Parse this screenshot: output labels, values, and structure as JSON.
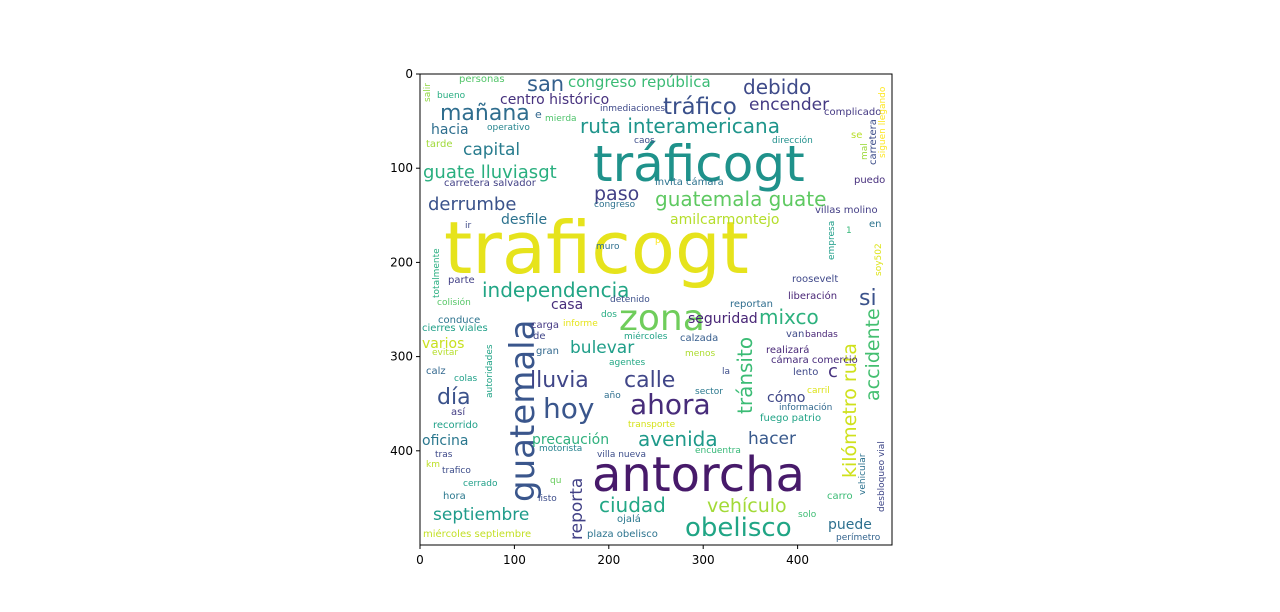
{
  "axes": {
    "x_ticks": [
      "0",
      "100",
      "200",
      "300",
      "400"
    ],
    "y_ticks": [
      "0",
      "100",
      "200",
      "300",
      "400"
    ],
    "x_tick_values": [
      0,
      100,
      200,
      300,
      400
    ],
    "y_tick_values": [
      0,
      100,
      200,
      300,
      400
    ],
    "xlim": [
      0,
      500
    ],
    "ylim": [
      500,
      0
    ]
  },
  "palette": "viridis",
  "words": [
    {
      "text": "traficogt",
      "color": "#e6e31c"
    },
    {
      "text": "antorcha",
      "color": "#471a6a"
    },
    {
      "text": "tráficogt",
      "color": "#1f928b"
    },
    {
      "text": "guatemala",
      "color": "#3a568c"
    },
    {
      "text": "zona",
      "color": "#6fcd5b"
    },
    {
      "text": "hoy",
      "color": "#3a568c"
    },
    {
      "text": "ahora",
      "color": "#472c7a"
    },
    {
      "text": "obelisco",
      "color": "#20a585"
    },
    {
      "text": "tráfico",
      "color": "#3a508b"
    },
    {
      "text": "mañana",
      "color": "#2f6d8e"
    },
    {
      "text": "san",
      "color": "#34608d"
    },
    {
      "text": "debido",
      "color": "#3e4a89"
    },
    {
      "text": "ruta interamericana",
      "color": "#1f958b"
    },
    {
      "text": "guatemala guate",
      "color": "#5ec961"
    },
    {
      "text": "independencia",
      "color": "#21a585"
    },
    {
      "text": "lluvia",
      "color": "#404688"
    },
    {
      "text": "calle",
      "color": "#404688"
    },
    {
      "text": "día",
      "color": "#3b528b"
    },
    {
      "text": "mixco",
      "color": "#2db17e"
    },
    {
      "text": "avenida",
      "color": "#1f9a8a"
    },
    {
      "text": "ciudad",
      "color": "#22a785"
    },
    {
      "text": "tránsito",
      "color": "#3bbc75"
    },
    {
      "text": "accidente",
      "color": "#44bf70"
    },
    {
      "text": "kilómetro ruta",
      "color": "#cfe11c"
    },
    {
      "text": "paso",
      "color": "#424086"
    },
    {
      "text": "capital",
      "color": "#287c8e"
    },
    {
      "text": "derrumbe",
      "color": "#3a528b"
    },
    {
      "text": "guate lluviasgt",
      "color": "#29af7f"
    },
    {
      "text": "encender",
      "color": "#443a83"
    },
    {
      "text": "congreso república",
      "color": "#3bbb75"
    },
    {
      "text": "centro histórico",
      "color": "#46317e"
    },
    {
      "text": "hacia",
      "color": "#2e6e8e"
    },
    {
      "text": "si",
      "color": "#3b528b"
    },
    {
      "text": "bulevar",
      "color": "#1f9e89"
    },
    {
      "text": "septiembre",
      "color": "#1e9b8a"
    },
    {
      "text": "reporta",
      "color": "#424186"
    },
    {
      "text": "vehículo",
      "color": "#a2da37"
    },
    {
      "text": "hacer",
      "color": "#38598c"
    },
    {
      "text": "puede",
      "color": "#2d708e"
    },
    {
      "text": "oficina",
      "color": "#2a778e"
    },
    {
      "text": "precaución",
      "color": "#30b17e"
    },
    {
      "text": "desfile",
      "color": "#2c728e"
    },
    {
      "text": "seguridad",
      "color": "#482576"
    },
    {
      "text": "casa",
      "color": "#472d7b"
    },
    {
      "text": "varios",
      "color": "#c8e020"
    },
    {
      "text": "amilcarmontejo",
      "color": "#b5de2b"
    },
    {
      "text": "c",
      "color": "#46327e"
    },
    {
      "text": "cómo",
      "color": "#3f4788"
    },
    {
      "text": "personas",
      "color": "#52c569"
    },
    {
      "text": "complicado",
      "color": "#443983"
    },
    {
      "text": "salir",
      "color": "#90d743"
    },
    {
      "text": "bueno",
      "color": "#27ad81"
    },
    {
      "text": "inmediaciones",
      "color": "#3e4989"
    },
    {
      "text": "e",
      "color": "#31678e"
    },
    {
      "text": "mierda",
      "color": "#4ec36b"
    },
    {
      "text": "operativo",
      "color": "#25848e"
    },
    {
      "text": "siguen llegando",
      "color": "#fde725"
    },
    {
      "text": "carretera",
      "color": "#3d4e8a"
    },
    {
      "text": "se",
      "color": "#b8de29"
    },
    {
      "text": "mal",
      "color": "#9dd93b"
    },
    {
      "text": "tarde",
      "color": "#a0da39"
    },
    {
      "text": "caos",
      "color": "#3d4d8a"
    },
    {
      "text": "dirección",
      "color": "#21908d"
    },
    {
      "text": "invita cámara",
      "color": "#2c728e"
    },
    {
      "text": "puedo",
      "color": "#472f7d"
    },
    {
      "text": "carretera salvador",
      "color": "#424186"
    },
    {
      "text": "congreso",
      "color": "#2c718e"
    },
    {
      "text": "villas molino",
      "color": "#433e85"
    },
    {
      "text": "ir",
      "color": "#3e4a89"
    },
    {
      "text": "en",
      "color": "#2c738e"
    },
    {
      "text": "empresa",
      "color": "#1f9e89"
    },
    {
      "text": "1",
      "color": "#35b779"
    },
    {
      "text": "muro",
      "color": "#2e6f8e"
    },
    {
      "text": "p",
      "color": "#fde725"
    },
    {
      "text": "soy502",
      "color": "#dde318"
    },
    {
      "text": "totalmente",
      "color": "#28ae80"
    },
    {
      "text": "parte",
      "color": "#424086"
    },
    {
      "text": "roosevelt",
      "color": "#3f4889"
    },
    {
      "text": "liberación",
      "color": "#482576"
    },
    {
      "text": "colisión",
      "color": "#56c667"
    },
    {
      "text": "detenido",
      "color": "#3c4f8a"
    },
    {
      "text": "reportan",
      "color": "#2e6d8e"
    },
    {
      "text": "de",
      "color": "#404688"
    },
    {
      "text": "dos",
      "color": "#25ac82"
    },
    {
      "text": "conduce",
      "color": "#2c738e"
    },
    {
      "text": "cierres viales",
      "color": "#1f9f88"
    },
    {
      "text": "carga",
      "color": "#443983"
    },
    {
      "text": "informe",
      "color": "#e5e419"
    },
    {
      "text": "van",
      "color": "#3e4a89"
    },
    {
      "text": "bandas",
      "color": "#482576"
    },
    {
      "text": "miércoles",
      "color": "#20a386"
    },
    {
      "text": "calzada",
      "color": "#365d8d"
    },
    {
      "text": "autoridades",
      "color": "#20a386"
    },
    {
      "text": "evitar",
      "color": "#b5de2b"
    },
    {
      "text": "gran",
      "color": "#31688e"
    },
    {
      "text": "realizará",
      "color": "#482777"
    },
    {
      "text": "cámara comercio",
      "color": "#472a7a"
    },
    {
      "text": "agentes",
      "color": "#22a884"
    },
    {
      "text": "menos",
      "color": "#addc30"
    },
    {
      "text": "calz",
      "color": "#31678e"
    },
    {
      "text": "colas",
      "color": "#1fa088"
    },
    {
      "text": "la",
      "color": "#3d4d8a"
    },
    {
      "text": "lento",
      "color": "#3f4889"
    },
    {
      "text": "carril",
      "color": "#dde318"
    },
    {
      "text": "sector",
      "color": "#2a788e"
    },
    {
      "text": "año",
      "color": "#2e6e8e"
    },
    {
      "text": "así",
      "color": "#433d84"
    },
    {
      "text": "información",
      "color": "#31688e"
    },
    {
      "text": "recorrido",
      "color": "#1fa088"
    },
    {
      "text": "transporte",
      "color": "#d5e21a"
    },
    {
      "text": "fuego patrio",
      "color": "#20a386"
    },
    {
      "text": "tras",
      "color": "#3e4989"
    },
    {
      "text": "motorista",
      "color": "#26828e"
    },
    {
      "text": "villa nueva",
      "color": "#3d4e8a"
    },
    {
      "text": "encuentra",
      "color": "#37b878"
    },
    {
      "text": "vehicular",
      "color": "#2c718e"
    },
    {
      "text": "desbloqueo vial",
      "color": "#3f4788"
    },
    {
      "text": "km",
      "color": "#bddf26"
    },
    {
      "text": "trafico",
      "color": "#3d4d8a"
    },
    {
      "text": "qu",
      "color": "#67cc5c"
    },
    {
      "text": "cerrado",
      "color": "#1f9f88"
    },
    {
      "text": "hora",
      "color": "#2a788e"
    },
    {
      "text": "listo",
      "color": "#3d4d8a"
    },
    {
      "text": "carro",
      "color": "#3bbb75"
    },
    {
      "text": "solo",
      "color": "#3dbc74"
    },
    {
      "text": "ojalá",
      "color": "#2a778e"
    },
    {
      "text": "miércoles septiembre",
      "color": "#c2df23"
    },
    {
      "text": "plaza obelisco",
      "color": "#2c738e"
    },
    {
      "text": "perímetro",
      "color": "#33638d"
    }
  ]
}
